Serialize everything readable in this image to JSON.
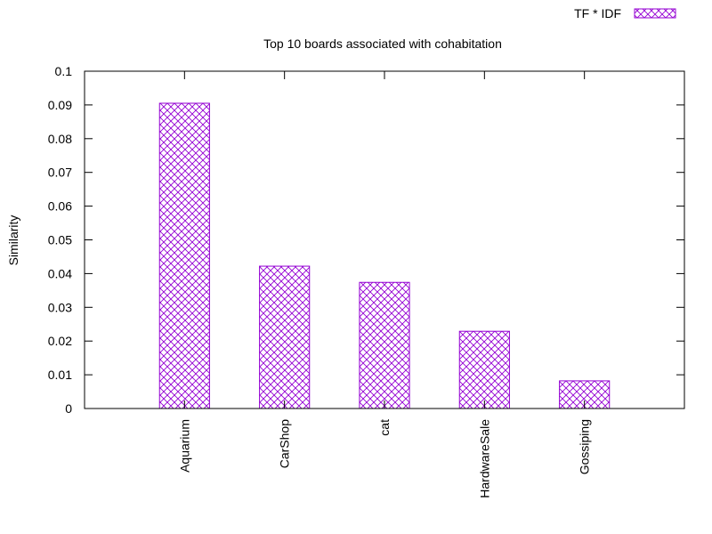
{
  "chart_data": {
    "type": "bar",
    "title": "Top 10 boards associated with cohabitation",
    "xlabel": "",
    "ylabel": "Similarity",
    "categories": [
      "Aquarium",
      "CarShop",
      "cat",
      "HardwareSale",
      "Gossiping"
    ],
    "series": [
      {
        "name": "TF * IDF",
        "values": [
          0.0905,
          0.0422,
          0.0374,
          0.0229,
          0.0082
        ]
      }
    ],
    "ylim": [
      0,
      0.1
    ],
    "yticks": [
      "0",
      "0.01",
      "0.02",
      "0.03",
      "0.04",
      "0.05",
      "0.06",
      "0.07",
      "0.08",
      "0.09",
      "0.1"
    ],
    "grid": false,
    "legend_position": "top-right",
    "bar_pattern": "crosshatch",
    "bar_color": "#9400d3"
  }
}
